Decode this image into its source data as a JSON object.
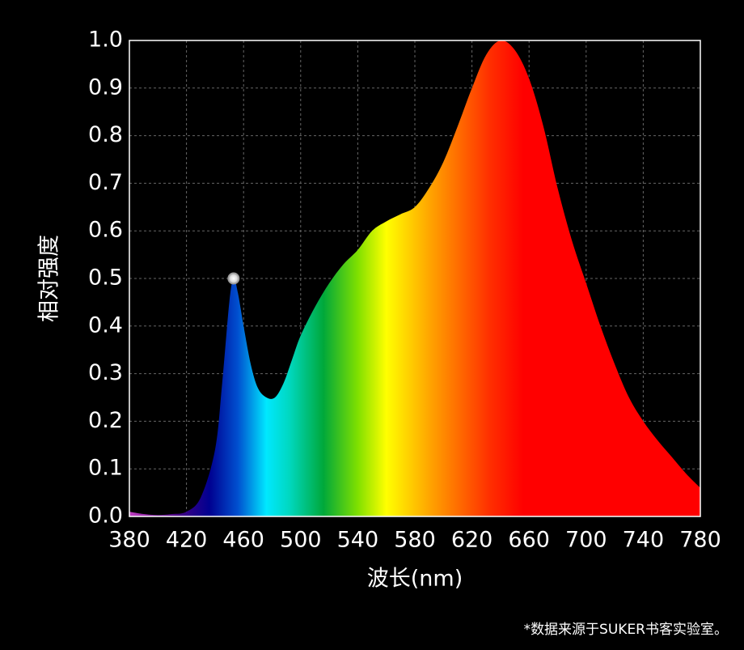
{
  "chart_data": {
    "type": "area",
    "xlabel": "波长(nm)",
    "ylabel": "相对强度",
    "note": "*数据来源于SUKER书客实验室。",
    "x": [
      380,
      390,
      400,
      410,
      420,
      430,
      440,
      445,
      450,
      453,
      456,
      460,
      465,
      470,
      476,
      482,
      488,
      494,
      500,
      510,
      520,
      530,
      540,
      550,
      560,
      570,
      580,
      590,
      600,
      610,
      620,
      630,
      640,
      650,
      660,
      670,
      680,
      690,
      700,
      710,
      720,
      730,
      740,
      750,
      760,
      770,
      780
    ],
    "values": [
      0.01,
      0.005,
      0.003,
      0.005,
      0.01,
      0.04,
      0.14,
      0.28,
      0.45,
      0.5,
      0.47,
      0.4,
      0.32,
      0.27,
      0.25,
      0.25,
      0.28,
      0.33,
      0.38,
      0.44,
      0.49,
      0.53,
      0.56,
      0.6,
      0.62,
      0.635,
      0.65,
      0.69,
      0.745,
      0.82,
      0.9,
      0.97,
      1.0,
      0.98,
      0.92,
      0.82,
      0.69,
      0.58,
      0.49,
      0.4,
      0.32,
      0.25,
      0.2,
      0.16,
      0.125,
      0.09,
      0.06
    ],
    "xlim": [
      380,
      780
    ],
    "ylim": [
      0,
      1
    ],
    "xticks": [
      380,
      420,
      460,
      500,
      540,
      580,
      620,
      660,
      700,
      740,
      780
    ],
    "yticks": [
      {
        "value": 0,
        "label": "0.0"
      },
      0.1,
      0.2,
      0.3,
      0.4,
      0.5,
      0.6,
      0.7,
      0.8,
      0.9,
      {
        "value": 1,
        "label": "1.0"
      }
    ],
    "grid": true
  }
}
